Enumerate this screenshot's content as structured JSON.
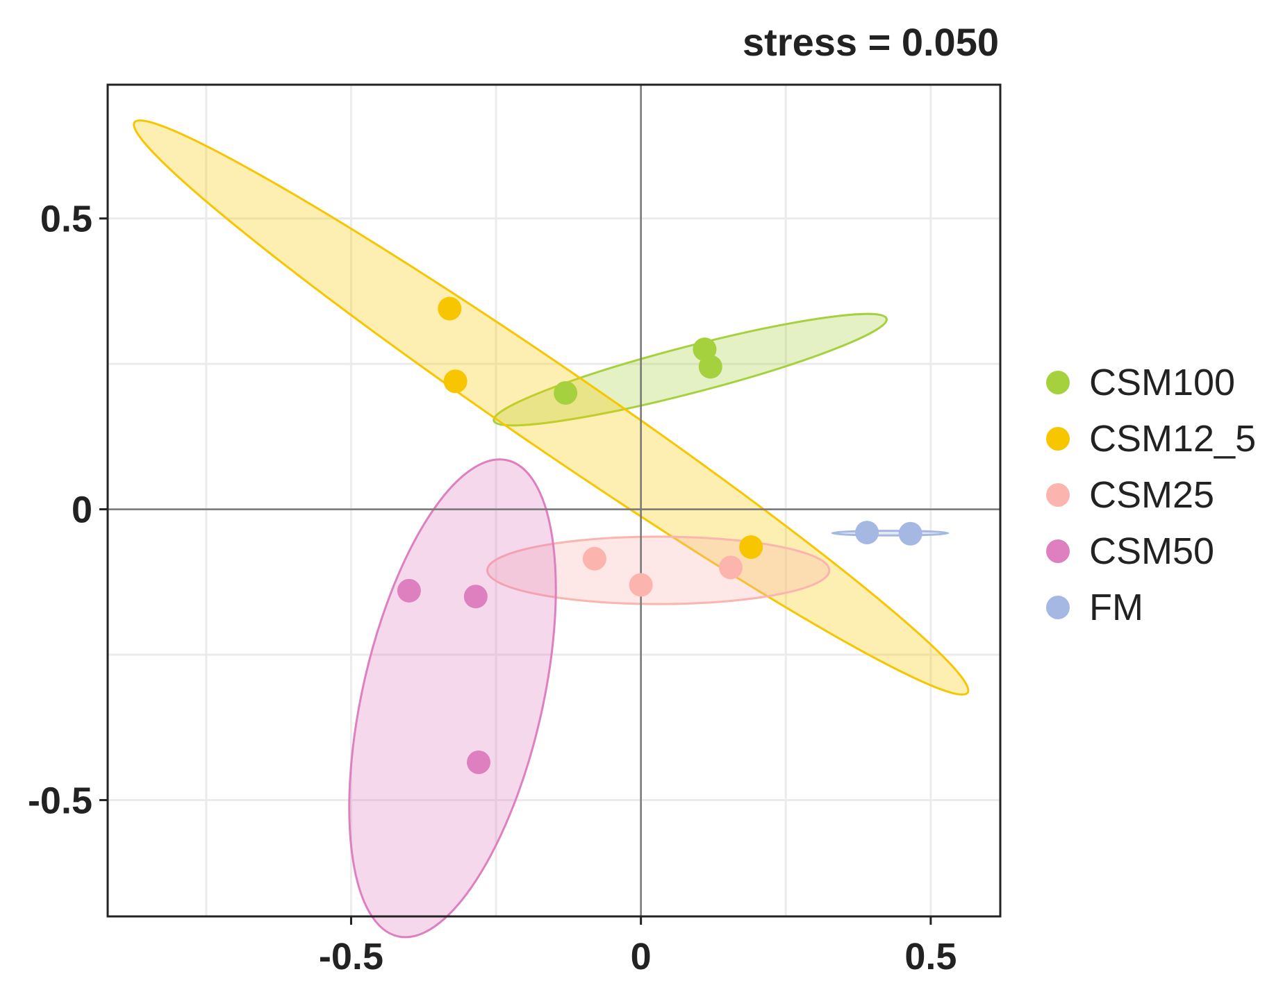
{
  "chart_data": {
    "type": "scatter",
    "title": "",
    "subtitle": "stress = 0.050",
    "xlabel": "",
    "ylabel": "",
    "xlim": [
      -0.92,
      0.62
    ],
    "ylim": [
      -0.7,
      0.73
    ],
    "x_ticks": [
      -0.5,
      0,
      0.5
    ],
    "x_tick_labels": [
      "-0.5",
      "0",
      "0.5"
    ],
    "y_ticks": [
      -0.5,
      0,
      0.5
    ],
    "y_tick_labels": [
      "-0.5",
      "0",
      "0.5"
    ],
    "grid": true,
    "zero_lines": true,
    "legend_position": "right",
    "series": [
      {
        "name": "CSM100",
        "color": "#a6d13e",
        "points": [
          [
            -0.13,
            0.2
          ],
          [
            0.11,
            0.275
          ],
          [
            0.12,
            0.245
          ]
        ],
        "ellipse": {
          "center": [
            0.085,
            0.24
          ],
          "semi_major": 0.35,
          "semi_minor": 0.04,
          "angle_deg": 14.5
        }
      },
      {
        "name": "CSM12_5",
        "color": "#f7c600",
        "points": [
          [
            -0.33,
            0.345
          ],
          [
            -0.32,
            0.22
          ],
          [
            0.19,
            -0.065
          ]
        ],
        "ellipse": {
          "center": [
            -0.155,
            0.175
          ],
          "semi_major": 0.87,
          "semi_minor": 0.07,
          "angle_deg": -34.3
        }
      },
      {
        "name": "CSM25",
        "color": "#fbb4ae",
        "points": [
          [
            -0.08,
            -0.085
          ],
          [
            0,
            -0.13
          ],
          [
            0.155,
            -0.1
          ]
        ],
        "ellipse": {
          "center": [
            0.03,
            -0.105
          ],
          "semi_major": 0.295,
          "semi_minor": 0.058,
          "angle_deg": 0
        }
      },
      {
        "name": "CSM50",
        "color": "#de7fc0",
        "points": [
          [
            -0.4,
            -0.14
          ],
          [
            -0.285,
            -0.15
          ],
          [
            -0.28,
            -0.435
          ]
        ],
        "ellipse": {
          "center": [
            -0.325,
            -0.325
          ],
          "semi_major": 0.42,
          "semi_minor": 0.155,
          "angle_deg": 77
        }
      },
      {
        "name": "FM",
        "color": "#a5b8e3",
        "points": [
          [
            0.39,
            -0.04
          ],
          [
            0.465,
            -0.042
          ]
        ],
        "ellipse": {
          "center": [
            0.43,
            -0.041
          ],
          "semi_major": 0.1,
          "semi_minor": 0.004,
          "angle_deg": 0
        }
      }
    ]
  }
}
